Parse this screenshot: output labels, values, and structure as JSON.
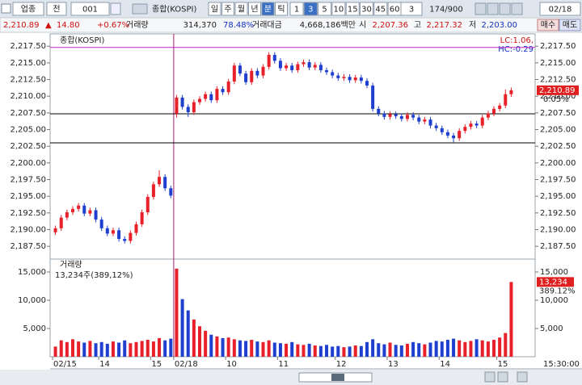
{
  "toolbar": {
    "market": "업종",
    "scope": "전",
    "code": "001",
    "name": "종합(KOSPI)",
    "periods": [
      "일",
      "주",
      "월",
      "년",
      "분",
      "틱"
    ],
    "selected_period": 4,
    "intervals": [
      "1",
      "3",
      "5",
      "10",
      "15",
      "30",
      "45",
      "60"
    ],
    "selected_interval": 1,
    "count": "3",
    "range": "174/900",
    "date": "02/18"
  },
  "info": {
    "price": {
      "value": 2210.89,
      "label": "2,210.89"
    },
    "change_sign": "▲",
    "change": "14.80",
    "change_pct": "+0.67%",
    "volume_label": "거래량",
    "volume": "314,370",
    "volume_ratio": "78.48%",
    "amount_label": "거래대금",
    "amount": "4,668,186백만",
    "open_label": "시",
    "open": {
      "value": 2207.36,
      "label": "2,207.36"
    },
    "high_label": "고",
    "high": {
      "value": 2217.32,
      "label": "2,217.32"
    },
    "low_label": "저",
    "low": {
      "value": 2203.0,
      "label": "2,203.00"
    },
    "buy": "매수",
    "sell": "매도"
  },
  "chart_data": [
    {
      "type": "candlestick",
      "title": "종합(KOSPI)",
      "annotations": [
        "LC:1.06,",
        "HC:-0.29"
      ],
      "price_note": "0.05%",
      "up_color": "#e8202a",
      "down_color": "#1f3fcf",
      "categories": [
        "02/15",
        null,
        null,
        null,
        null,
        null,
        null,
        null,
        "14",
        null,
        null,
        null,
        null,
        null,
        null,
        null,
        null,
        "15",
        null,
        null,
        null,
        "02/18",
        null,
        null,
        null,
        null,
        null,
        null,
        null,
        null,
        "10",
        null,
        null,
        null,
        null,
        null,
        null,
        null,
        null,
        "11",
        null,
        null,
        null,
        null,
        null,
        null,
        null,
        null,
        null,
        "12",
        null,
        null,
        null,
        null,
        null,
        null,
        null,
        null,
        "13",
        null,
        null,
        null,
        null,
        null,
        null,
        null,
        null,
        "14",
        null,
        null,
        null,
        null,
        null,
        null,
        null,
        null,
        null,
        "15",
        null,
        null
      ],
      "open": [
        2189.6,
        2190.2,
        2191.8,
        2192.6,
        2193.1,
        2193.6,
        2192.4,
        2192.9,
        2191.5,
        2190.2,
        2189.4,
        2189.9,
        2188.6,
        2188.3,
        2189.5,
        2190.8,
        2192.6,
        2194.9,
        2196.8,
        2197.9,
        2196.2,
        2207.4,
        2209.8,
        2208.4,
        2207.6,
        2209.1,
        2209.6,
        2210.3,
        2209.4,
        2211.1,
        2210.6,
        2212.2,
        2214.6,
        2213.4,
        2212.1,
        2213.8,
        2213.1,
        2214.4,
        2216.2,
        2215.3,
        2214.2,
        2214.6,
        2213.9,
        2214.8,
        2215.1,
        2214.3,
        2214.7,
        2213.9,
        2213.6,
        2213.1,
        2212.7,
        2212.9,
        2212.4,
        2212.8,
        2212.3,
        2211.6,
        2208.1,
        2207.4,
        2206.9,
        2207.3,
        2207.0,
        2206.6,
        2207.2,
        2206.8,
        2206.2,
        2206.5,
        2205.6,
        2205.2,
        2204.6,
        2204.1,
        2203.7,
        2204.8,
        2205.4,
        2205.9,
        2205.6,
        2206.8,
        2207.4,
        2208.1,
        2208.6,
        2210.3
      ],
      "high": [
        2190.6,
        2192.2,
        2193.0,
        2193.5,
        2194.0,
        2194.0,
        2193.3,
        2193.3,
        2191.9,
        2190.6,
        2190.3,
        2190.3,
        2189.0,
        2189.9,
        2191.2,
        2193.0,
        2195.3,
        2197.2,
        2198.9,
        2198.3,
        2196.6,
        2210.2,
        2210.2,
        2208.8,
        2209.5,
        2210.0,
        2210.7,
        2210.7,
        2211.5,
        2211.5,
        2212.6,
        2215.0,
        2215.0,
        2213.8,
        2214.2,
        2214.2,
        2214.8,
        2216.6,
        2216.6,
        2215.7,
        2215.0,
        2215.0,
        2215.2,
        2215.5,
        2215.5,
        2215.1,
        2215.1,
        2214.3,
        2214.0,
        2213.5,
        2213.3,
        2213.3,
        2213.2,
        2213.2,
        2212.7,
        2212.0,
        2208.5,
        2207.8,
        2207.7,
        2207.7,
        2207.4,
        2207.6,
        2207.6,
        2207.2,
        2206.9,
        2206.9,
        2206.0,
        2205.6,
        2205.0,
        2204.5,
        2205.2,
        2205.8,
        2206.3,
        2206.3,
        2207.2,
        2207.8,
        2208.5,
        2209.0,
        2211.0,
        2211.3
      ],
      "low": [
        2189.2,
        2189.8,
        2191.4,
        2192.2,
        2192.7,
        2192.0,
        2192.0,
        2191.1,
        2189.8,
        2189.0,
        2189.0,
        2188.2,
        2187.9,
        2187.9,
        2189.1,
        2190.4,
        2192.2,
        2194.5,
        2196.4,
        2195.8,
        2194.7,
        2206.8,
        2208.0,
        2206.9,
        2207.2,
        2208.7,
        2209.2,
        2209.0,
        2209.0,
        2210.2,
        2210.2,
        2211.8,
        2213.0,
        2211.7,
        2211.7,
        2212.7,
        2212.7,
        2214.0,
        2214.9,
        2213.8,
        2213.8,
        2213.5,
        2213.5,
        2214.4,
        2213.9,
        2213.9,
        2213.5,
        2213.2,
        2212.7,
        2212.3,
        2212.3,
        2212.0,
        2212.0,
        2211.9,
        2211.2,
        2207.7,
        2207.0,
        2206.5,
        2206.5,
        2206.6,
        2206.2,
        2206.2,
        2206.4,
        2205.8,
        2205.8,
        2205.2,
        2204.8,
        2204.2,
        2203.7,
        2203.1,
        2203.3,
        2204.4,
        2205.0,
        2205.2,
        2205.2,
        2206.4,
        2207.0,
        2207.7,
        2208.2,
        2209.9
      ],
      "close": [
        2190.2,
        2191.8,
        2192.6,
        2193.1,
        2193.6,
        2192.4,
        2192.9,
        2191.5,
        2190.2,
        2189.4,
        2189.9,
        2188.6,
        2188.3,
        2189.5,
        2190.8,
        2192.6,
        2194.9,
        2196.8,
        2197.9,
        2196.2,
        2195.1,
        2209.8,
        2208.4,
        2207.6,
        2209.1,
        2209.6,
        2210.3,
        2209.4,
        2211.1,
        2210.6,
        2212.2,
        2214.6,
        2213.4,
        2212.1,
        2213.8,
        2213.1,
        2214.4,
        2216.2,
        2215.3,
        2214.2,
        2214.6,
        2213.9,
        2214.8,
        2215.1,
        2214.3,
        2214.7,
        2213.9,
        2213.6,
        2213.1,
        2212.7,
        2212.9,
        2212.4,
        2212.8,
        2212.3,
        2211.6,
        2208.1,
        2207.4,
        2206.9,
        2207.3,
        2207.0,
        2206.6,
        2207.2,
        2206.8,
        2206.2,
        2206.5,
        2205.6,
        2205.2,
        2204.6,
        2204.1,
        2203.7,
        2204.8,
        2205.4,
        2205.9,
        2205.6,
        2206.8,
        2207.4,
        2208.1,
        2208.6,
        2210.3,
        2210.89
      ],
      "ylim": [
        2185.7,
        2219.1
      ],
      "yticks": [
        {
          "value": 2187.5,
          "label": "2,187.50"
        },
        {
          "value": 2190,
          "label": "2,190.00"
        },
        {
          "value": 2192.5,
          "label": "2,192.50"
        },
        {
          "value": 2195,
          "label": "2,195.00"
        },
        {
          "value": 2197.5,
          "label": "2,197.50"
        },
        {
          "value": 2200,
          "label": "2,200.00"
        },
        {
          "value": 2202.5,
          "label": "2,202.50"
        },
        {
          "value": 2205,
          "label": "2,205.00"
        },
        {
          "value": 2207.5,
          "label": "2,207.50"
        },
        {
          "value": 2210,
          "label": "2,210.00"
        },
        {
          "value": 2212.5,
          "label": "2,212.50"
        },
        {
          "value": 2215,
          "label": "2,215.00"
        },
        {
          "value": 2217.5,
          "label": "2,217.50"
        }
      ]
    },
    {
      "type": "bar",
      "title": "거래량",
      "subtitle": "13,234주(389,12%)",
      "last_label": "13,234",
      "last_note": "389.12%",
      "values": [
        1800,
        2900,
        2600,
        3100,
        2700,
        2500,
        2800,
        2400,
        2600,
        2300,
        2700,
        2500,
        2900,
        2400,
        2600,
        2800,
        3000,
        2700,
        3300,
        2900,
        3200,
        15600,
        10200,
        8200,
        6600,
        5400,
        4600,
        3900,
        3600,
        3300,
        3400,
        3100,
        2900,
        2800,
        3000,
        2700,
        2600,
        2900,
        2500,
        2400,
        2300,
        2600,
        2200,
        2100,
        2300,
        2000,
        1900,
        2100,
        1800,
        1900,
        1700,
        1800,
        2000,
        1900,
        2600,
        3100,
        2400,
        2200,
        2500,
        2100,
        2000,
        2300,
        2600,
        2400,
        2200,
        2500,
        2800,
        2700,
        3000,
        3200,
        2900,
        2600,
        2800,
        3100,
        2900,
        2700,
        3000,
        3400,
        4200,
        13234
      ],
      "ylim": [
        0,
        17000
      ],
      "yticks": [
        {
          "value": 5000,
          "label": "5,000"
        },
        {
          "value": 10000,
          "label": "10,000"
        },
        {
          "value": 15000,
          "label": "15,000"
        }
      ]
    }
  ],
  "time": "15:30:00"
}
